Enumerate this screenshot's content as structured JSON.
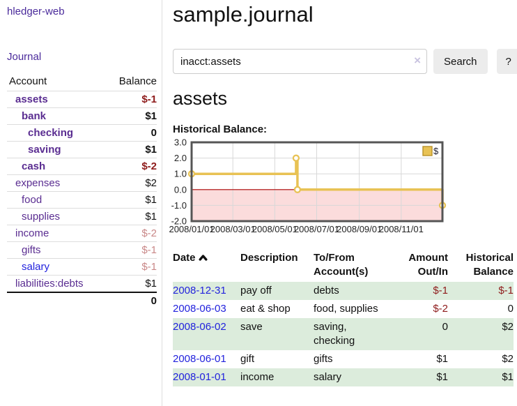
{
  "app": {
    "brand": "hledger-web"
  },
  "sidebar": {
    "journal_link": "Journal",
    "header": {
      "account": "Account",
      "balance": "Balance"
    },
    "accounts": [
      {
        "name": "assets",
        "balance": "$-1"
      },
      {
        "name": "bank",
        "balance": "$1"
      },
      {
        "name": "checking",
        "balance": "0"
      },
      {
        "name": "saving",
        "balance": "$1"
      },
      {
        "name": "cash",
        "balance": "$-2"
      },
      {
        "name": "expenses",
        "balance": "$2"
      },
      {
        "name": "food",
        "balance": "$1"
      },
      {
        "name": "supplies",
        "balance": "$1"
      },
      {
        "name": "income",
        "balance": "$-2"
      },
      {
        "name": "gifts",
        "balance": "$-1"
      },
      {
        "name": "salary",
        "balance": "$-1"
      },
      {
        "name": "liabilities:debts",
        "balance": "$1"
      }
    ],
    "total": "0"
  },
  "header": {
    "title": "sample.journal"
  },
  "search": {
    "query": "inacct:assets",
    "clear_icon": "×",
    "search_label": "Search",
    "help_label": "?"
  },
  "account_page": {
    "heading": "assets",
    "chart_title": "Historical Balance:"
  },
  "chart_data": {
    "type": "line",
    "step": true,
    "title": "Historical Balance:",
    "legend": "$",
    "legend_position": "top-right",
    "series": [
      {
        "name": "$",
        "points": [
          [
            "2008-01-01",
            1.0
          ],
          [
            "2008-06-01",
            2.0
          ],
          [
            "2008-06-03",
            0.0
          ],
          [
            "2008-12-31",
            -1.0
          ]
        ]
      }
    ],
    "xlim": [
      "2008-01-01",
      "2008-12-31"
    ],
    "ylim": [
      -2.0,
      3.0
    ],
    "y_ticks": [
      3.0,
      2.0,
      1.0,
      0.0,
      -1.0,
      -2.0
    ],
    "x_ticks": [
      "2008/01/01",
      "2008/03/01",
      "2008/05/01",
      "2008/07/01",
      "2008/09/01",
      "2008/11/01"
    ],
    "grid": true,
    "negative_region_shaded": true,
    "colors": {
      "line": "#e8c254",
      "marker_fill": "#ffffff",
      "negative_bg": "#fbdcdc",
      "zero_line": "#aa0000",
      "grid": "#d8d8d8",
      "border": "#555555"
    }
  },
  "register": {
    "headers": {
      "date": "Date",
      "description": "Description",
      "accounts": "To/From Account(s)",
      "amount": "Amount Out/In",
      "balance": "Historical Balance"
    },
    "rows": [
      {
        "date": "2008-12-31",
        "description": "pay off",
        "accounts": "debts",
        "amount": "$-1",
        "balance": "$-1"
      },
      {
        "date": "2008-06-03",
        "description": "eat & shop",
        "accounts": "food, supplies",
        "amount": "$-2",
        "balance": "0"
      },
      {
        "date": "2008-06-02",
        "description": "save",
        "accounts": "saving, checking",
        "amount": "0",
        "balance": "$2"
      },
      {
        "date": "2008-06-01",
        "description": "gift",
        "accounts": "gifts",
        "amount": "$1",
        "balance": "$2"
      },
      {
        "date": "2008-01-01",
        "description": "income",
        "accounts": "salary",
        "amount": "$1",
        "balance": "$1"
      }
    ]
  },
  "colors": {
    "link_blue": "#2222dd",
    "link_purple": "#5a2d91",
    "negative_strong": "#8e1b1b",
    "negative_soft": "#c98888",
    "row_green": "#dcecdc"
  }
}
